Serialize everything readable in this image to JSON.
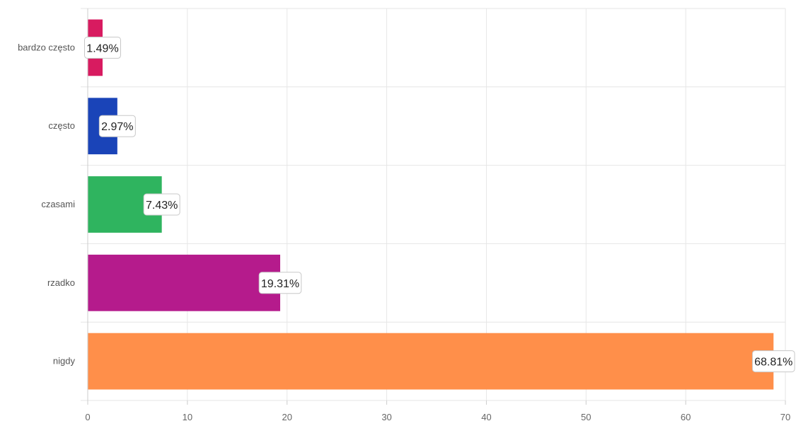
{
  "chart_data": {
    "type": "bar",
    "orientation": "horizontal",
    "categories": [
      "bardzo często",
      "często",
      "czasami",
      "rzadko",
      "nigdy"
    ],
    "values": [
      1.49,
      2.97,
      7.43,
      19.31,
      68.81
    ],
    "data_labels": [
      "1.49%",
      "2.97%",
      "7.43%",
      "19.31%",
      "68.81%"
    ],
    "colors": [
      "#d81b60",
      "#1a44b8",
      "#2fb45f",
      "#b51b8c",
      "#ff8f4a"
    ],
    "xticks": [
      "0",
      "10",
      "20",
      "30",
      "40",
      "50",
      "60",
      "70"
    ],
    "xlim": [
      0,
      70
    ],
    "title": "",
    "xlabel": "",
    "ylabel": "",
    "grid": true,
    "legend": "none"
  }
}
